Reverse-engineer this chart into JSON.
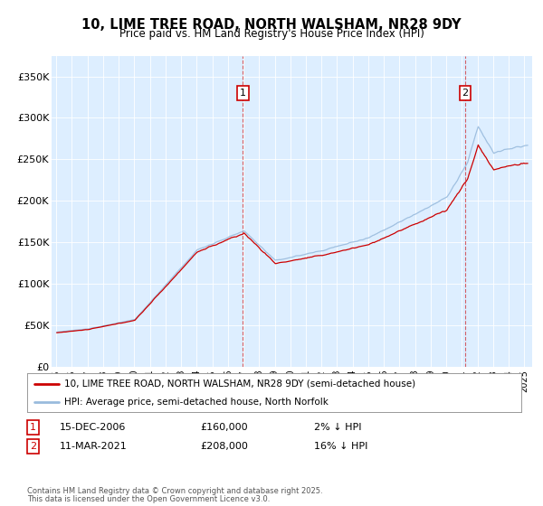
{
  "title": "10, LIME TREE ROAD, NORTH WALSHAM, NR28 9DY",
  "subtitle": "Price paid vs. HM Land Registry's House Price Index (HPI)",
  "background_color": "#ffffff",
  "plot_bg_color": "#ddeeff",
  "line1_color": "#cc0000",
  "line2_color": "#99bbdd",
  "annotation1": {
    "label": "1",
    "date_str": "15-DEC-2006",
    "price": 160000,
    "note": "2% ↓ HPI",
    "year": 2006,
    "month": 12
  },
  "annotation2": {
    "label": "2",
    "date_str": "11-MAR-2021",
    "price": 208000,
    "note": "16% ↓ HPI",
    "year": 2021,
    "month": 3
  },
  "legend1": "10, LIME TREE ROAD, NORTH WALSHAM, NR28 9DY (semi-detached house)",
  "legend2": "HPI: Average price, semi-detached house, North Norfolk",
  "footer1": "Contains HM Land Registry data © Crown copyright and database right 2025.",
  "footer2": "This data is licensed under the Open Government Licence v3.0.",
  "ylabel_ticks": [
    "£0",
    "£50K",
    "£100K",
    "£150K",
    "£200K",
    "£250K",
    "£300K",
    "£350K"
  ],
  "ylabel_values": [
    0,
    50000,
    100000,
    150000,
    200000,
    250000,
    300000,
    350000
  ],
  "ylim": [
    0,
    375000
  ],
  "xlim_start": 1994.7,
  "xlim_end": 2025.5
}
